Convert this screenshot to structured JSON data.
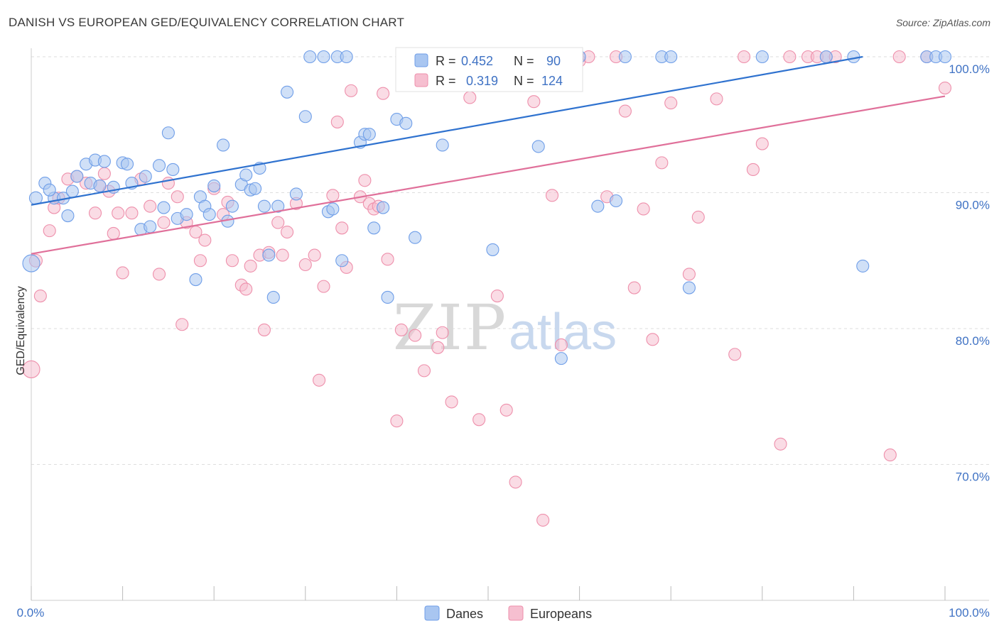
{
  "title": "DANISH VS EUROPEAN GED/EQUIVALENCY CORRELATION CHART",
  "source": "Source: ZipAtlas.com",
  "chart_data": {
    "type": "scatter",
    "ylabel": "GED/Equivalency",
    "xlabel": "",
    "xlim": [
      0,
      100
    ],
    "ylim": [
      60,
      100.5
    ],
    "x_tick_labels": [
      "0.0%",
      "100.0%"
    ],
    "y_ticks": [
      {
        "value": 100,
        "label": "100.0%"
      },
      {
        "value": 90,
        "label": "90.0%"
      },
      {
        "value": 80,
        "label": "80.0%"
      },
      {
        "value": 70,
        "label": "70.0%"
      }
    ],
    "grid": "horizontal dashed",
    "legend_position": "top-center",
    "colors": {
      "danes": "#6f9ee8",
      "danes_fill": "#a9c6f1",
      "danes_line": "#2f72cf",
      "europeans": "#ee8fab",
      "europeans_fill": "#f6bfd0",
      "europeans_line": "#e0709a",
      "value_text": "#3f72c4"
    },
    "stats": [
      {
        "r_label": "R =",
        "r": "0.452",
        "n_label": "N =",
        "n": "90"
      },
      {
        "r_label": "R =",
        "r": "0.319",
        "n_label": "N =",
        "n": "124"
      }
    ],
    "series": [
      {
        "name": "Danes",
        "trend": {
          "x0": 0,
          "y0": 89.1,
          "x1": 91,
          "y1": 100
        },
        "points": [
          [
            0,
            84.8
          ],
          [
            0.5,
            89.6
          ],
          [
            1.5,
            90.7
          ],
          [
            2.5,
            89.6
          ],
          [
            2,
            90.2
          ],
          [
            3.5,
            89.6
          ],
          [
            4,
            88.3
          ],
          [
            4.5,
            90.1
          ],
          [
            5,
            91.2
          ],
          [
            6,
            92.1
          ],
          [
            6.5,
            90.7
          ],
          [
            7,
            92.4
          ],
          [
            7.5,
            90.5
          ],
          [
            8,
            92.3
          ],
          [
            9,
            90.4
          ],
          [
            10,
            92.2
          ],
          [
            10.5,
            92.1
          ],
          [
            11,
            90.7
          ],
          [
            12,
            87.3
          ],
          [
            12.5,
            91.2
          ],
          [
            13,
            87.5
          ],
          [
            14,
            92.0
          ],
          [
            14.5,
            88.9
          ],
          [
            15,
            94.4
          ],
          [
            15.5,
            91.7
          ],
          [
            16,
            88.1
          ],
          [
            17,
            88.4
          ],
          [
            18,
            83.6
          ],
          [
            18.5,
            89.7
          ],
          [
            19,
            89.0
          ],
          [
            19.5,
            88.4
          ],
          [
            20,
            90.5
          ],
          [
            21,
            93.5
          ],
          [
            21.5,
            87.9
          ],
          [
            22,
            89.0
          ],
          [
            23,
            90.6
          ],
          [
            23.5,
            91.3
          ],
          [
            24,
            90.2
          ],
          [
            24.5,
            90.3
          ],
          [
            25,
            91.8
          ],
          [
            25.5,
            89.0
          ],
          [
            26,
            85.4
          ],
          [
            26.5,
            82.3
          ],
          [
            27,
            89.0
          ],
          [
            28,
            97.4
          ],
          [
            29,
            89.9
          ],
          [
            30,
            95.6
          ],
          [
            30.5,
            100
          ],
          [
            32,
            100
          ],
          [
            32.5,
            88.6
          ],
          [
            33,
            88.8
          ],
          [
            33.5,
            100
          ],
          [
            34,
            85.0
          ],
          [
            34.5,
            100
          ],
          [
            36,
            93.7
          ],
          [
            36.5,
            94.3
          ],
          [
            37,
            94.3
          ],
          [
            37.5,
            87.4
          ],
          [
            38.5,
            88.9
          ],
          [
            39,
            82.3
          ],
          [
            40,
            95.4
          ],
          [
            41,
            95.1
          ],
          [
            41.5,
            98.0
          ],
          [
            42,
            86.7
          ],
          [
            44,
            100
          ],
          [
            45,
            93.5
          ],
          [
            46,
            99.0
          ],
          [
            46.5,
            100
          ],
          [
            47,
            97.9
          ],
          [
            47.5,
            100
          ],
          [
            48,
            100
          ],
          [
            50,
            98.1
          ],
          [
            50.5,
            85.8
          ],
          [
            51,
            100
          ],
          [
            51.5,
            100
          ],
          [
            52,
            100
          ],
          [
            55,
            100
          ],
          [
            55.5,
            93.4
          ],
          [
            58,
            77.8
          ],
          [
            59,
            100
          ],
          [
            60,
            100
          ],
          [
            62,
            89.0
          ],
          [
            64,
            89.4
          ],
          [
            65,
            100
          ],
          [
            69,
            100
          ],
          [
            70,
            100
          ],
          [
            72,
            83.0
          ],
          [
            80,
            100
          ],
          [
            87,
            100
          ],
          [
            90,
            100
          ],
          [
            91,
            84.6
          ],
          [
            98,
            100
          ],
          [
            99,
            100
          ],
          [
            100,
            100
          ]
        ]
      },
      {
        "name": "Europeans",
        "trend": {
          "x0": 0,
          "y0": 85.5,
          "x1": 100,
          "y1": 97.1
        },
        "points": [
          [
            0,
            77
          ],
          [
            0.5,
            85.0
          ],
          [
            1,
            82.4
          ],
          [
            2,
            87.2
          ],
          [
            2.5,
            88.9
          ],
          [
            3,
            89.6
          ],
          [
            4,
            91.0
          ],
          [
            5,
            91.2
          ],
          [
            6,
            90.7
          ],
          [
            7,
            88.5
          ],
          [
            7.5,
            90.5
          ],
          [
            8,
            91.4
          ],
          [
            8.5,
            90.1
          ],
          [
            9,
            87.0
          ],
          [
            9.5,
            88.5
          ],
          [
            10,
            84.1
          ],
          [
            11,
            88.5
          ],
          [
            12,
            91.0
          ],
          [
            13,
            89.0
          ],
          [
            14,
            84.0
          ],
          [
            14.5,
            87.8
          ],
          [
            15,
            90.7
          ],
          [
            16,
            89.7
          ],
          [
            16.5,
            80.3
          ],
          [
            17,
            87.8
          ],
          [
            18,
            87.1
          ],
          [
            18.5,
            85.0
          ],
          [
            19,
            86.5
          ],
          [
            20,
            90.3
          ],
          [
            21,
            88.4
          ],
          [
            21.5,
            89.3
          ],
          [
            22,
            85.0
          ],
          [
            23,
            83.2
          ],
          [
            23.5,
            82.9
          ],
          [
            24,
            84.6
          ],
          [
            25,
            85.4
          ],
          [
            25.5,
            79.9
          ],
          [
            26,
            85.6
          ],
          [
            27,
            87.8
          ],
          [
            27.5,
            85.4
          ],
          [
            28,
            87.1
          ],
          [
            29,
            89.2
          ],
          [
            30,
            84.7
          ],
          [
            31,
            85.4
          ],
          [
            31.5,
            76.2
          ],
          [
            32,
            83.1
          ],
          [
            33,
            89.8
          ],
          [
            33.5,
            95.2
          ],
          [
            34,
            87.4
          ],
          [
            34.5,
            84.5
          ],
          [
            35,
            97.5
          ],
          [
            36,
            89.7
          ],
          [
            36.5,
            90.9
          ],
          [
            37,
            89.2
          ],
          [
            37.5,
            88.8
          ],
          [
            38,
            89.0
          ],
          [
            38.5,
            97.3
          ],
          [
            39,
            85.1
          ],
          [
            40,
            73.2
          ],
          [
            40.5,
            79.9
          ],
          [
            41,
            100
          ],
          [
            42,
            79.5
          ],
          [
            43,
            76.9
          ],
          [
            44,
            100
          ],
          [
            44.5,
            78.6
          ],
          [
            45,
            79.7
          ],
          [
            46,
            74.6
          ],
          [
            47,
            99.1
          ],
          [
            48,
            97.0
          ],
          [
            49,
            73.3
          ],
          [
            50,
            100
          ],
          [
            51,
            82.4
          ],
          [
            52,
            74.0
          ],
          [
            53,
            68.7
          ],
          [
            54,
            100
          ],
          [
            55,
            96.7
          ],
          [
            56,
            65.9
          ],
          [
            57,
            89.8
          ],
          [
            58,
            78.8
          ],
          [
            59,
            100
          ],
          [
            60,
            99.7
          ],
          [
            61,
            100
          ],
          [
            63,
            89.7
          ],
          [
            64,
            100
          ],
          [
            65,
            96.0
          ],
          [
            66,
            83.0
          ],
          [
            67,
            88.8
          ],
          [
            68,
            79.2
          ],
          [
            69,
            92.2
          ],
          [
            70,
            96.6
          ],
          [
            72,
            84.0
          ],
          [
            73,
            88.2
          ],
          [
            75,
            96.9
          ],
          [
            77,
            78.1
          ],
          [
            78,
            100
          ],
          [
            79,
            91.7
          ],
          [
            80,
            93.6
          ],
          [
            82,
            71.5
          ],
          [
            83,
            100
          ],
          [
            85,
            100
          ],
          [
            86,
            100
          ],
          [
            87,
            100
          ],
          [
            88,
            100
          ],
          [
            94,
            70.7
          ],
          [
            95,
            100
          ],
          [
            98,
            100
          ],
          [
            100,
            97.7
          ]
        ]
      }
    ]
  }
}
